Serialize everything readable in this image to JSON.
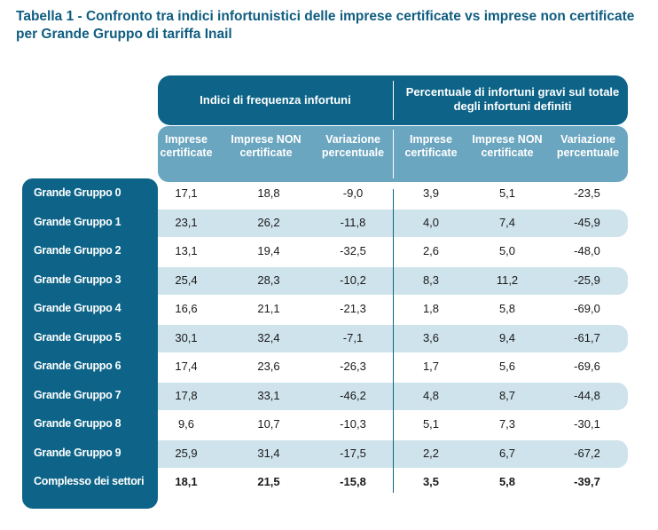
{
  "title": "Tabella 1 - Confronto tra indici infortunistici delle imprese certificate vs imprese non certificate per Grande Gruppo di tariffa Inail",
  "groups": [
    "Indici di frequenza infortuni",
    "Percentuale di infortuni gravi sul totale degli infortuni definiti"
  ],
  "columns": [
    "Imprese certificate",
    "Imprese NON certificate",
    "Variazione percentuale",
    "Imprese certificate",
    "Imprese NON certificate",
    "Variazione percentuale"
  ],
  "colors": {
    "dark": "#0d6488",
    "medium": "#6ba6c0",
    "stripe": "#cfe3ec"
  },
  "rows": [
    {
      "label": "Grande Gruppo 0",
      "values": [
        "17,1",
        "18,8",
        "-9,0",
        "3,9",
        "5,1",
        "-23,5"
      ]
    },
    {
      "label": "Grande Gruppo 1",
      "values": [
        "23,1",
        "26,2",
        "-11,8",
        "4,0",
        "7,4",
        "-45,9"
      ]
    },
    {
      "label": "Grande Gruppo 2",
      "values": [
        "13,1",
        "19,4",
        "-32,5",
        "2,6",
        "5,0",
        "-48,0"
      ]
    },
    {
      "label": "Grande Gruppo 3",
      "values": [
        "25,4",
        "28,3",
        "-10,2",
        "8,3",
        "11,2",
        "-25,9"
      ]
    },
    {
      "label": "Grande Gruppo 4",
      "values": [
        "16,6",
        "21,1",
        "-21,3",
        "1,8",
        "5,8",
        "-69,0"
      ]
    },
    {
      "label": "Grande Gruppo 5",
      "values": [
        "30,1",
        "32,4",
        "-7,1",
        "3,6",
        "9,4",
        "-61,7"
      ]
    },
    {
      "label": "Grande Gruppo 6",
      "values": [
        "17,4",
        "23,6",
        "-26,3",
        "1,7",
        "5,6",
        "-69,6"
      ]
    },
    {
      "label": "Grande Gruppo 7",
      "values": [
        "17,8",
        "33,1",
        "-46,2",
        "4,8",
        "8,7",
        "-44,8"
      ]
    },
    {
      "label": "Grande Gruppo 8",
      "values": [
        "9,6",
        "10,7",
        "-10,3",
        "5,1",
        "7,3",
        "-30,1"
      ]
    },
    {
      "label": "Grande Gruppo 9",
      "values": [
        "25,9",
        "31,4",
        "-17,5",
        "2,2",
        "6,7",
        "-67,2"
      ]
    },
    {
      "label": "Complesso dei settori",
      "values": [
        "18,1",
        "21,5",
        "-15,8",
        "3,5",
        "5,8",
        "-39,7"
      ]
    }
  ]
}
